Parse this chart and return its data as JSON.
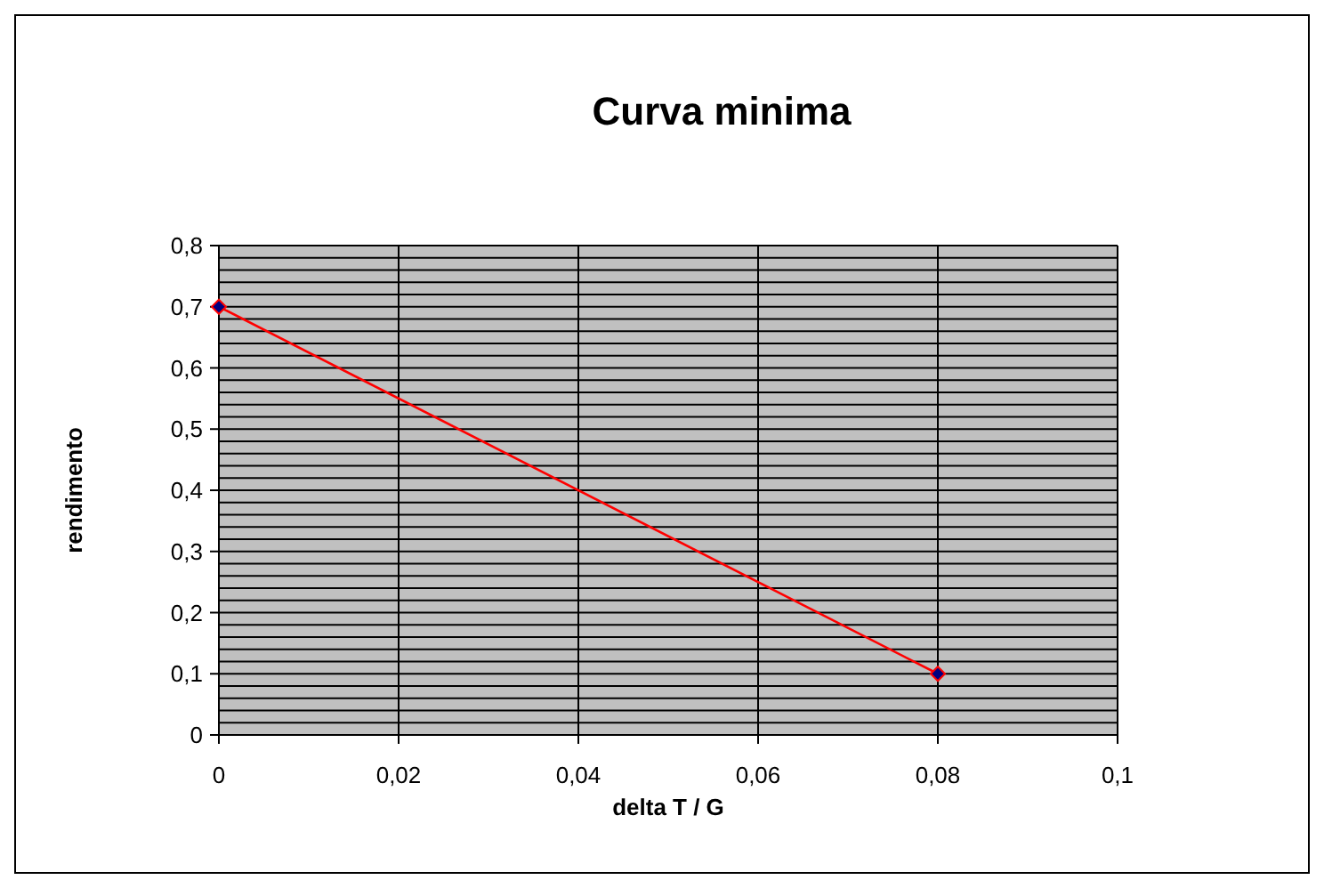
{
  "chart_data": {
    "type": "line",
    "title": "Curva minima",
    "xlabel": "delta T / G",
    "ylabel": "rendimento",
    "x": [
      0,
      0.08
    ],
    "series": [
      {
        "color": "#ff0000",
        "values": [
          0.7,
          0.1
        ]
      }
    ],
    "xlim": [
      0,
      0.1
    ],
    "ylim": [
      0,
      0.8
    ],
    "xticks": [
      0,
      {
        "value": 0.02,
        "label": "0,02"
      },
      {
        "value": 0.04,
        "label": "0,04"
      },
      {
        "value": 0.06,
        "label": "0,06"
      },
      {
        "value": 0.08,
        "label": "0,08"
      },
      {
        "value": 0.1,
        "label": "0,1"
      }
    ],
    "yticks": [
      0,
      {
        "value": 0.02,
        "label": null
      },
      {
        "value": 0.04,
        "label": null
      },
      {
        "value": 0.06,
        "label": null
      },
      {
        "value": 0.08,
        "label": null
      },
      {
        "value": 0.1,
        "label": "0,1"
      },
      {
        "value": 0.12,
        "label": null
      },
      {
        "value": 0.14,
        "label": null
      },
      {
        "value": 0.16,
        "label": null
      },
      {
        "value": 0.18,
        "label": null
      },
      {
        "value": 0.2,
        "label": "0,2"
      },
      {
        "value": 0.22,
        "label": null
      },
      {
        "value": 0.24,
        "label": null
      },
      {
        "value": 0.26,
        "label": null
      },
      {
        "value": 0.28,
        "label": null
      },
      {
        "value": 0.3,
        "label": "0,3"
      },
      {
        "value": 0.32,
        "label": null
      },
      {
        "value": 0.34,
        "label": null
      },
      {
        "value": 0.36,
        "label": null
      },
      {
        "value": 0.38,
        "label": null
      },
      {
        "value": 0.4,
        "label": "0,4"
      },
      {
        "value": 0.42,
        "label": null
      },
      {
        "value": 0.44,
        "label": null
      },
      {
        "value": 0.46,
        "label": null
      },
      {
        "value": 0.48,
        "label": null
      },
      {
        "value": 0.5,
        "label": "0,5"
      },
      {
        "value": 0.52,
        "label": null
      },
      {
        "value": 0.54,
        "label": null
      },
      {
        "value": 0.56,
        "label": null
      },
      {
        "value": 0.58,
        "label": null
      },
      {
        "value": 0.6,
        "label": "0,6"
      },
      {
        "value": 0.62,
        "label": null
      },
      {
        "value": 0.64,
        "label": null
      },
      {
        "value": 0.66,
        "label": null
      },
      {
        "value": 0.68,
        "label": null
      },
      {
        "value": 0.7,
        "label": "0,7"
      },
      {
        "value": 0.72,
        "label": null
      },
      {
        "value": 0.74,
        "label": null
      },
      {
        "value": 0.76,
        "label": null
      },
      {
        "value": 0.78,
        "label": null
      },
      {
        "value": 0.8,
        "label": "0,8"
      }
    ],
    "grid": true,
    "marker": "diamond",
    "line_style": "solid"
  }
}
